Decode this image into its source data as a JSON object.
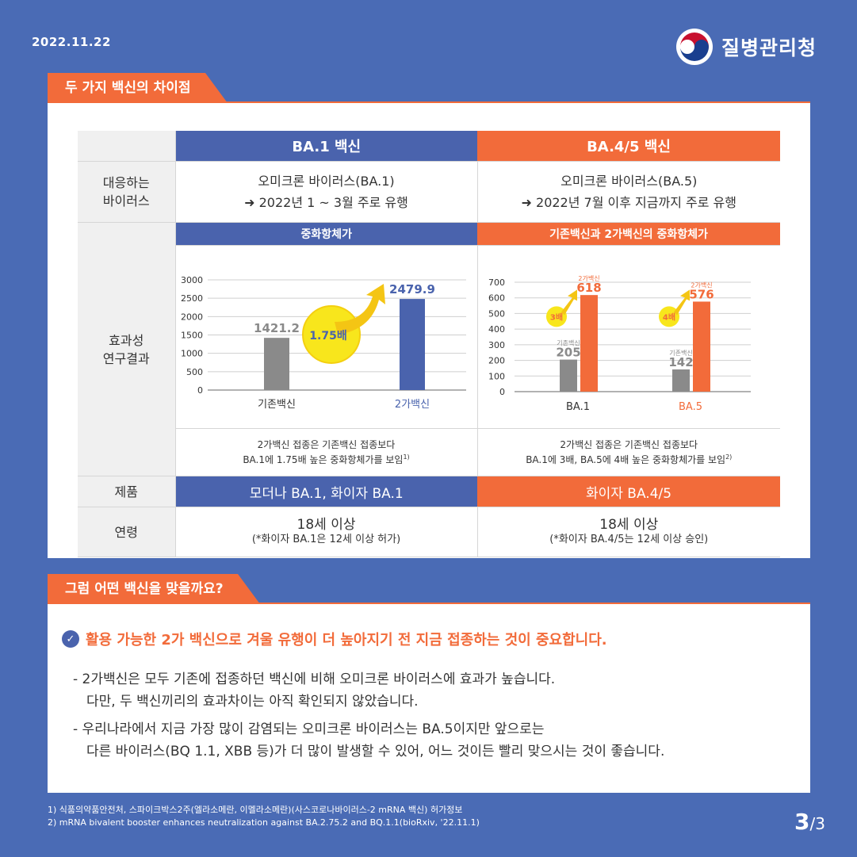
{
  "header": {
    "date": "2022.11.22",
    "agency": "질병관리청"
  },
  "section1": {
    "title": "두 가지 백신의 차이점"
  },
  "table": {
    "col_ba1": "BA.1 백신",
    "col_ba45": "BA.4/5 백신",
    "row_virus_label": "대응하는\n바이러스",
    "ba1_virus_l1": "오미크론 바이러스(BA.1)",
    "ba1_virus_l2": "➜ 2022년 1 ~ 3월 주로 유행",
    "ba45_virus_l1": "오미크론 바이러스(BA.5)",
    "ba45_virus_l2": "➜ 2022년 7월 이후 지금까지 주로 유행",
    "row_effect_label": "효과성\n연구결과",
    "ba1_effect_title": "중화항체가",
    "ba45_effect_title": "기존백신과 2가백신의 중화항체가",
    "ba1_note_l1": "2가백신 접종은 기존백신 접종보다",
    "ba1_note_l2": "BA.1에 1.75배 높은 중화항체가를 보임",
    "ba1_note_sup": "1)",
    "ba45_note_l1": "2가백신 접종은 기존백신 접종보다",
    "ba45_note_l2": "BA.1에 3배,  BA.5에 4배 높은 중화항체가를 보임",
    "ba45_note_sup": "2)",
    "row_product_label": "제품",
    "ba1_product": "모더나 BA.1, 화이자 BA.1",
    "ba45_product": "화이자 BA.4/5",
    "row_age_label": "연령",
    "ba1_age": "18세 이상",
    "ba1_age_sub": "(*화이자 BA.1은 12세 이상 허가)",
    "ba45_age": "18세 이상",
    "ba45_age_sub": "(*화이자 BA.4/5는 12세 이상 승인)"
  },
  "chart_data": [
    {
      "type": "bar",
      "categories": [
        "기존백신",
        "2가백신"
      ],
      "values": [
        1421.2,
        2479.9
      ],
      "ylim": [
        0,
        3000
      ],
      "yticks": [
        0,
        500,
        1000,
        1500,
        2000,
        2500,
        3000
      ],
      "annotation": "1.75배",
      "colors": [
        "#8a8a8a",
        "#4a63ad"
      ]
    },
    {
      "type": "bar",
      "categories": [
        "BA.1",
        "BA.5"
      ],
      "series": [
        {
          "name": "기존백신",
          "values": [
            205,
            142
          ]
        },
        {
          "name": "2가백신",
          "values": [
            618,
            576
          ]
        }
      ],
      "multipliers": [
        "3배",
        "4배"
      ],
      "ylim": [
        0,
        700
      ],
      "yticks": [
        0,
        100,
        200,
        300,
        400,
        500,
        600,
        700
      ],
      "colors": [
        "#8a8a8a",
        "#f26b3a"
      ]
    }
  ],
  "section2": {
    "title": "그럼 어떤 백신을 맞을까요?"
  },
  "advice": {
    "headline": "활용 가능한 2가 백신으로 겨울 유행이 더 높아지기 전 지금 접종하는 것이 중요합니다.",
    "p1_l1": "- 2가백신은 모두 기존에 접종하던 백신에 비해 오미크론 바이러스에 효과가 높습니다.",
    "p1_l2": "다만, 두 백신끼리의 효과차이는 아직 확인되지 않았습니다.",
    "p2_l1": "- 우리나라에서 지금 가장 많이 감염되는 오미크론 바이러스는 BA.5이지만 앞으로는",
    "p2_l2": "다른 바이러스(BQ 1.1, XBB 등)가 더 많이 발생할 수 있어, 어느 것이든 빨리 맞으시는 것이 좋습니다."
  },
  "footnotes": {
    "f1": "1) 식품의약품안전처, 스파이크박스2주(엘라소메란, 이멜라소메란)(사스코로나바이러스-2 mRNA 백신) 허가정보",
    "f2": "2) mRNA bivalent booster enhances neutralization against BA.2.75.2 and BQ.1.1(bioRxiv, '22.11.1)"
  },
  "pagination": {
    "current": "3",
    "total": "/3"
  },
  "theme": {
    "blue": "#4a63ad",
    "orange": "#f26b3a",
    "bg": "#4a6bb5"
  }
}
